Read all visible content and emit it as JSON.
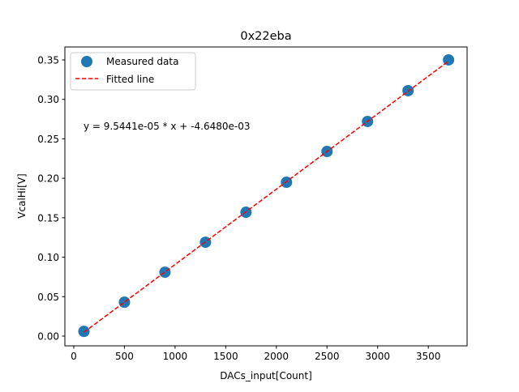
{
  "chart_data": {
    "type": "scatter",
    "title": "0x22eba",
    "xlabel": "DACs_input[Count]",
    "ylabel": "VcalHi[V]",
    "xlim": [
      -88,
      3883
    ],
    "ylim": [
      -0.0123,
      0.3664
    ],
    "xticks": [
      0,
      500,
      1000,
      1500,
      2000,
      2500,
      3000,
      3500
    ],
    "xtick_labels": [
      "0",
      "500",
      "1000",
      "1500",
      "2000",
      "2500",
      "3000",
      "3500"
    ],
    "yticks": [
      0,
      0.05,
      0.1,
      0.15,
      0.2,
      0.25,
      0.3,
      0.35
    ],
    "ytick_labels": [
      "0.00",
      "0.05",
      "0.10",
      "0.15",
      "0.20",
      "0.25",
      "0.30",
      "0.35"
    ],
    "grid": false,
    "legend_position": "top-left",
    "series": [
      {
        "name": "Measured data",
        "kind": "scatter",
        "color": "#1f77b4",
        "x": [
          100,
          500,
          900,
          1300,
          1700,
          2100,
          2500,
          2900,
          3300,
          3700
        ],
        "y": [
          0.006,
          0.043,
          0.081,
          0.119,
          0.157,
          0.195,
          0.234,
          0.272,
          0.311,
          0.35
        ]
      },
      {
        "name": "Fitted line",
        "kind": "line",
        "color": "#ff0000",
        "slope": 9.5441e-05,
        "intercept": -0.004648,
        "x": [
          100,
          3700
        ]
      }
    ],
    "annotation": "y = 9.5441e-05 * x + -4.6480e-03"
  }
}
